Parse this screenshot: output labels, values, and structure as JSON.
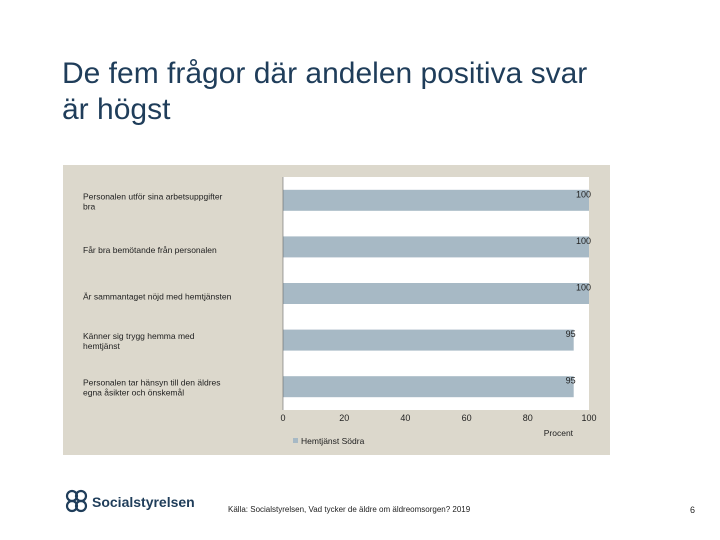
{
  "slide": {
    "title_lines": [
      "De fem frågor där andelen positiva svar",
      "är högst"
    ],
    "source": "Källa: Socialstyrelsen, Vad tycker de äldre om äldreomsorgen? 2019",
    "page_number": "6",
    "logo_text": "Socialstyrelsen"
  },
  "colors": {
    "bar": "#a7b9c5",
    "panel": "#dcd8cc",
    "plot": "#ffffff",
    "title": "#1f3d5a",
    "logo": "#1f3d5a"
  },
  "chart_data": {
    "type": "bar",
    "orientation": "horizontal",
    "categories": [
      [
        "Personalen utför sina arbetsuppgifter",
        "bra"
      ],
      [
        "Får bra bemötande från personalen"
      ],
      [
        "Är sammantaget nöjd med hemtjänsten"
      ],
      [
        "Känner sig trygg hemma med",
        "hemtjänst"
      ],
      [
        "Personalen tar hänsyn till den äldres",
        "egna åsikter och önskemål"
      ]
    ],
    "series": [
      {
        "name": "Hemtjänst Södra",
        "values": [
          100,
          100,
          100,
          95,
          95
        ]
      }
    ],
    "xlim": [
      0,
      100
    ],
    "x_ticks": [
      "0",
      "20",
      "40",
      "60",
      "80",
      "100"
    ],
    "x_tick_values": [
      0,
      20,
      40,
      60,
      80,
      100
    ],
    "xlabel": "Procent",
    "legend_position": "bottom-left",
    "grid": false
  }
}
